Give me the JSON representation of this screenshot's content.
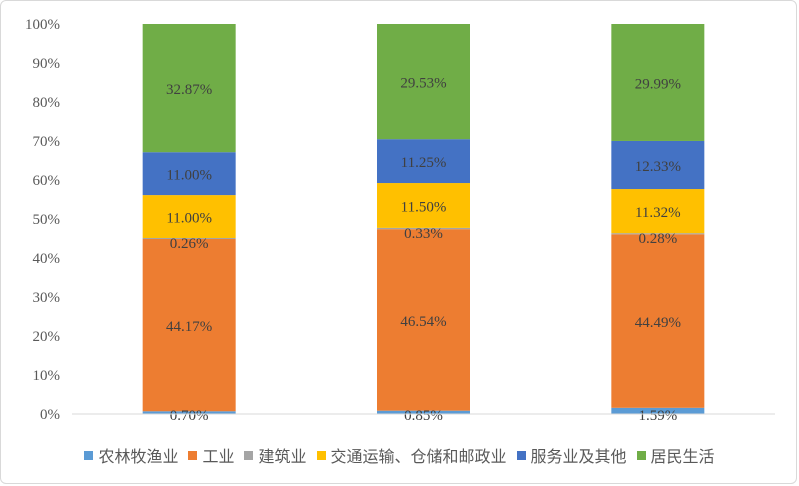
{
  "chart_data": {
    "type": "bar",
    "stacked": true,
    "categories": [
      "",
      "",
      ""
    ],
    "series": [
      {
        "name": "农林牧渔业",
        "color": "#5b9bd5",
        "values": [
          0.7,
          0.85,
          1.59
        ],
        "labels": [
          "0.70%",
          "0.85%",
          "1.59%"
        ]
      },
      {
        "name": "工业",
        "color": "#ed7d31",
        "values": [
          44.17,
          46.54,
          44.49
        ],
        "labels": [
          "44.17%",
          "46.54%",
          "44.49%"
        ]
      },
      {
        "name": "建筑业",
        "color": "#a5a5a5",
        "values": [
          0.26,
          0.33,
          0.28
        ],
        "labels": [
          "0.26%",
          "0.33%",
          "0.28%"
        ]
      },
      {
        "name": "交通运输、仓储和邮政业",
        "color": "#ffc000",
        "values": [
          11.0,
          11.5,
          11.32
        ],
        "labels": [
          "11.00%",
          "11.50%",
          "11.32%"
        ]
      },
      {
        "name": "服务业及其他",
        "color": "#4472c4",
        "values": [
          11.0,
          11.25,
          12.33
        ],
        "labels": [
          "11.00%",
          "11.25%",
          "12.33%"
        ]
      },
      {
        "name": "居民生活",
        "color": "#70ad47",
        "values": [
          32.87,
          29.53,
          29.99
        ],
        "labels": [
          "32.87%",
          "29.53%",
          "29.99%"
        ]
      }
    ],
    "y_ticks": [
      "0%",
      "10%",
      "20%",
      "30%",
      "40%",
      "50%",
      "60%",
      "70%",
      "80%",
      "90%",
      "100%"
    ],
    "ylim": [
      0,
      100
    ],
    "legend_position": "bottom",
    "grid": false
  }
}
